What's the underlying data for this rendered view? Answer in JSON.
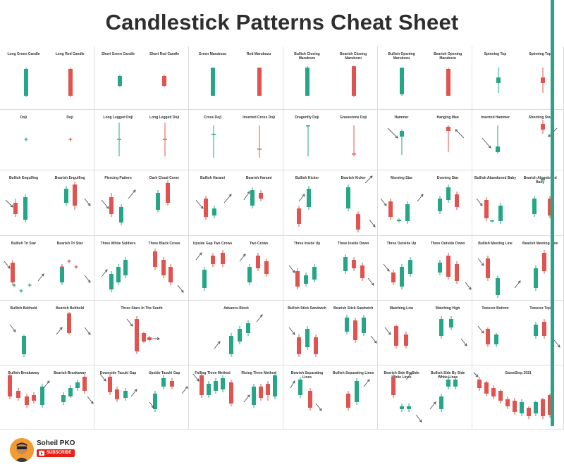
{
  "title": "Candlestick Patterns Cheat Sheet",
  "colors": {
    "bull": "#26a688",
    "bear": "#e0534f",
    "arrow": "#555555",
    "accent_bar": "#26a688"
  },
  "cells": [
    {
      "labels": [
        "Long Green Candle",
        "Long Red Candle"
      ]
    },
    {
      "labels": [
        "Short Green Candle",
        "Short Red Candle"
      ]
    },
    {
      "labels": [
        "Green Marubozu",
        "Red Marubozu"
      ]
    },
    {
      "labels": [
        "Bullish Closing Marubozu",
        "Bearish Closing Marubozu"
      ]
    },
    {
      "labels": [
        "Bullish Opening Marubozu",
        "Bearish Opening Marubozu"
      ]
    },
    {
      "labels": [
        "Spinning Top",
        "Spinning Top"
      ]
    },
    {
      "labels": [
        "Doji",
        "Doji"
      ]
    },
    {
      "labels": [
        "Long Legged Doji",
        "Long Legged Doji"
      ]
    },
    {
      "labels": [
        "Cross Doji",
        "Inverted Cross Doji"
      ]
    },
    {
      "labels": [
        "Dragonfly Doji",
        "Gravestone Doji"
      ]
    },
    {
      "labels": [
        "Hammer",
        "Hanging Man"
      ]
    },
    {
      "labels": [
        "Inverted Hammer",
        "Shooting Star"
      ]
    },
    {
      "labels": [
        "Bullish Engulfing",
        "Bearish Engulfing"
      ]
    },
    {
      "labels": [
        "Piercing Pattern",
        "Dark Cloud Cover"
      ]
    },
    {
      "labels": [
        "Bullish Harami",
        "Bearish Harami"
      ]
    },
    {
      "labels": [
        "Bullish Kicker",
        "Bearish Kicker"
      ]
    },
    {
      "labels": [
        "Morning Star",
        "Evening Star"
      ]
    },
    {
      "labels": [
        "Bullish Abandoned Baby",
        "Bearish Abandoned Baby"
      ]
    },
    {
      "labels": [
        "Bullish Tri Star",
        "Bearish Tri Star"
      ]
    },
    {
      "labels": [
        "Three White Soldiers",
        "Three Black Crows"
      ]
    },
    {
      "labels": [
        "Upside Gap Two Crows",
        "Two Crows"
      ]
    },
    {
      "labels": [
        "Three Inside Up",
        "Three Inside Down"
      ]
    },
    {
      "labels": [
        "Three Outside Up",
        "Three Outside Down"
      ]
    },
    {
      "labels": [
        "Bullish Meeting Line",
        "Bearish Meeting Line"
      ]
    },
    {
      "labels": [
        "Bullish Belthold",
        "Bearish Belthold"
      ]
    },
    {
      "labels": [
        "Three Stars In The South"
      ]
    },
    {
      "labels": [
        "Advance Block"
      ]
    },
    {
      "labels": [
        "Bullish Stick Sandwich",
        "Bearish Stick Sandwich"
      ]
    },
    {
      "labels": [
        "Matching Low",
        "Matching High"
      ]
    },
    {
      "labels": [
        "Tweezer Bottom",
        "Tweezer Top"
      ]
    },
    {
      "labels": [
        "Bullish Breakaway",
        "Bearish Breakaway"
      ]
    },
    {
      "labels": [
        "Downside Tasuki Gap",
        "Upside Tasuki Gap"
      ]
    },
    {
      "labels": [
        "Falling Three Method",
        "Rising Three Method"
      ]
    },
    {
      "labels": [
        "Bearish Separating Lines",
        "Bullish Separating Lines"
      ]
    },
    {
      "labels": [
        "Bearish Side By Side White Lines",
        "Bullish Side By Side White Lines"
      ]
    },
    {
      "labels": [
        "GameStop 2021"
      ]
    }
  ],
  "footer": {
    "author": "Soheil PKO",
    "subscribe": "SUBSCRIBE"
  }
}
